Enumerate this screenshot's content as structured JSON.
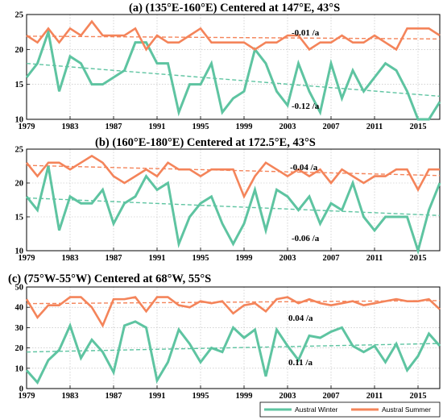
{
  "colors": {
    "winter": "#5ec4a1",
    "summer": "#f4845a"
  },
  "legend": {
    "winter": "Austral Winter",
    "summer": "Austral Summer"
  },
  "chart_data": [
    {
      "type": "line",
      "title": "(a) (135°E-160°E) Centered at 147°E, 43°S",
      "ylim": [
        10,
        25
      ],
      "yticks": [
        "10",
        "15",
        "20",
        "25"
      ],
      "x": [
        1979,
        1980,
        1981,
        1982,
        1983,
        1984,
        1985,
        1986,
        1987,
        1988,
        1989,
        1990,
        1991,
        1992,
        1993,
        1994,
        1995,
        1996,
        1997,
        1998,
        1999,
        2000,
        2001,
        2002,
        2003,
        2004,
        2005,
        2006,
        2007,
        2008,
        2009,
        2010,
        2011,
        2012,
        2013,
        2014,
        2015,
        2016,
        2017
      ],
      "xticks": [
        "1979",
        "1983",
        "1987",
        "1991",
        "1995",
        "1999",
        "2003",
        "2007",
        "2011",
        "2015"
      ],
      "series": [
        {
          "name": "Austral Winter",
          "values": [
            16,
            18,
            22.5,
            14,
            19,
            18,
            15,
            15,
            16,
            17,
            21,
            21,
            18,
            18,
            11,
            15,
            15,
            18,
            11,
            13,
            14,
            20,
            18,
            14,
            12,
            18,
            14,
            11,
            18,
            13,
            17,
            14,
            16,
            18,
            17,
            14,
            10,
            10,
            12.5
          ]
        },
        {
          "name": "Austral Summer",
          "values": [
            22,
            21,
            23,
            21,
            23,
            22,
            24,
            22,
            22,
            22,
            23,
            20,
            22,
            21,
            21,
            22,
            23,
            21,
            21,
            21,
            21,
            20,
            21,
            21,
            22,
            22,
            20,
            21,
            21,
            22,
            21,
            21,
            22,
            21,
            20,
            23,
            23,
            23,
            22
          ]
        }
      ],
      "trends": [
        {
          "series": "Austral Winter",
          "start": 18,
          "end": 13.3,
          "label": "-0.12 /a"
        },
        {
          "series": "Austral Summer",
          "start": 21.9,
          "end": 21.5,
          "label": "-0.01 /a"
        }
      ]
    },
    {
      "type": "line",
      "title": "(b) (160°E-180°E) Centered at 172.5°E, 43°S",
      "ylim": [
        10,
        25
      ],
      "yticks": [
        "10",
        "15",
        "20",
        "25"
      ],
      "x": [
        1979,
        1980,
        1981,
        1982,
        1983,
        1984,
        1985,
        1986,
        1987,
        1988,
        1989,
        1990,
        1991,
        1992,
        1993,
        1994,
        1995,
        1996,
        1997,
        1998,
        1999,
        2000,
        2001,
        2002,
        2003,
        2004,
        2005,
        2006,
        2007,
        2008,
        2009,
        2010,
        2011,
        2012,
        2013,
        2014,
        2015,
        2016,
        2017
      ],
      "xticks": [
        "1979",
        "1983",
        "1987",
        "1991",
        "1995",
        "1999",
        "2003",
        "2007",
        "2011",
        "2015"
      ],
      "series": [
        {
          "name": "Austral Winter",
          "values": [
            18,
            16,
            22.5,
            13,
            18,
            17,
            17,
            19,
            14,
            17,
            18,
            21,
            19,
            20,
            11,
            15,
            17,
            18,
            14,
            11,
            14,
            19,
            13,
            19,
            18,
            16,
            18,
            14,
            17,
            16,
            20,
            15,
            13,
            15,
            15,
            15,
            10,
            16,
            20
          ]
        },
        {
          "name": "Austral Summer",
          "values": [
            23,
            21,
            23,
            23,
            22,
            23,
            24,
            23,
            21,
            20,
            21,
            22,
            21,
            23,
            22,
            22,
            21,
            22,
            22,
            22,
            18,
            21,
            23,
            22,
            21,
            22,
            21,
            22,
            20,
            22,
            21,
            20,
            21,
            21,
            22,
            22,
            19,
            22,
            22
          ]
        }
      ],
      "trends": [
        {
          "series": "Austral Winter",
          "start": 17.8,
          "end": 15.2,
          "label": "-0.06 /a"
        },
        {
          "series": "Austral Summer",
          "start": 22.6,
          "end": 21.1,
          "label": "-0.04 /a"
        }
      ]
    },
    {
      "type": "line",
      "title": "(c) (75°W-55°W) Centered at 68°W, 55°S",
      "ylim": [
        0,
        50
      ],
      "yticks": [
        "0",
        "10",
        "20",
        "30",
        "40",
        "50"
      ],
      "x": [
        1979,
        1980,
        1981,
        1982,
        1983,
        1984,
        1985,
        1986,
        1987,
        1988,
        1989,
        1990,
        1991,
        1992,
        1993,
        1994,
        1995,
        1996,
        1997,
        1998,
        1999,
        2000,
        2001,
        2002,
        2003,
        2004,
        2005,
        2006,
        2007,
        2008,
        2009,
        2010,
        2011,
        2012,
        2013,
        2014,
        2015,
        2016,
        2017
      ],
      "xticks": [
        "1979",
        "1983",
        "1987",
        "1991",
        "1995",
        "1999",
        "2003",
        "2007",
        "2011",
        "2015"
      ],
      "series": [
        {
          "name": "Austral Winter",
          "values": [
            9,
            3,
            14,
            19,
            31,
            15,
            24,
            18,
            8,
            31,
            33,
            30,
            4,
            13,
            29,
            22,
            13,
            20,
            18,
            30,
            25,
            29,
            6,
            29,
            21,
            14,
            26,
            25,
            28,
            30,
            21,
            18,
            21,
            13,
            22,
            9,
            16,
            27,
            21
          ]
        },
        {
          "name": "Austral Summer",
          "values": [
            44,
            35,
            41,
            41,
            45,
            45,
            40,
            31,
            44,
            44,
            45,
            38,
            45,
            45,
            41,
            40,
            43,
            42,
            43,
            37,
            41,
            42,
            38,
            44,
            45,
            42,
            44,
            42,
            41,
            42,
            43,
            41,
            42,
            43,
            44,
            43,
            43,
            44,
            39
          ]
        }
      ],
      "trends": [
        {
          "series": "Austral Winter",
          "start": 18,
          "end": 22.2,
          "label": "0.11 /a"
        },
        {
          "series": "Austral Summer",
          "start": 41.8,
          "end": 43.3,
          "label": "0.04 /a"
        }
      ]
    }
  ]
}
